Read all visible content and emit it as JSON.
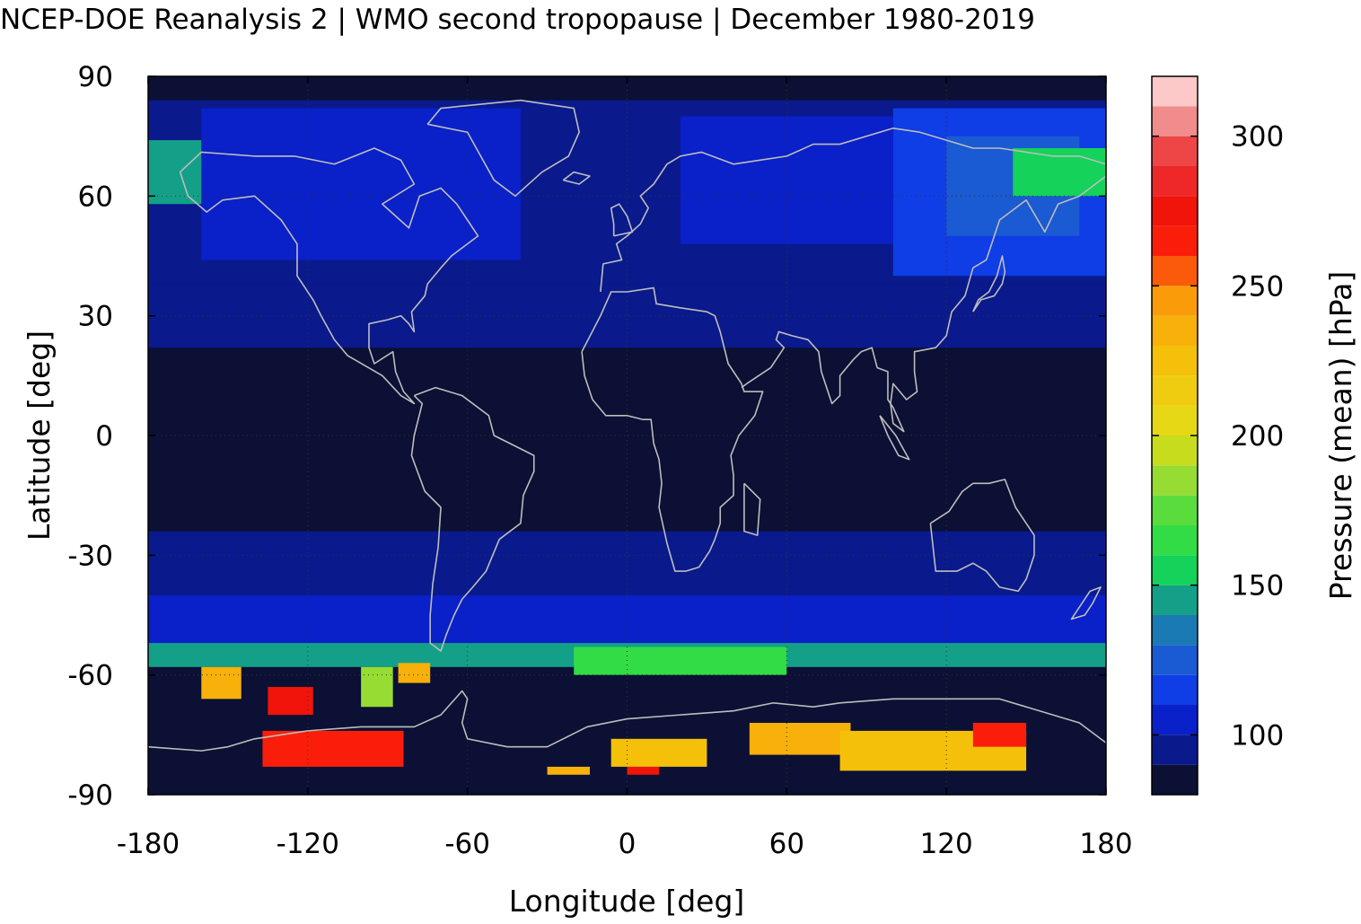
{
  "chart_data": {
    "type": "heatmap",
    "title": "NCEP-DOE Reanalysis 2 | WMO second tropopause | December 1980-2019",
    "xlabel": "Longitude [deg]",
    "ylabel": "Latitude [deg]",
    "colorbar_label": "Pressure (mean) [hPa]",
    "xlim": [
      -180,
      180
    ],
    "ylim": [
      -90,
      90
    ],
    "x_ticks": [
      -180,
      -120,
      -60,
      0,
      60,
      120,
      180
    ],
    "y_ticks": [
      90,
      60,
      30,
      0,
      -30,
      -60,
      -90
    ],
    "colorbar_range": [
      80,
      320
    ],
    "colorbar_ticks": [
      100,
      150,
      200,
      250,
      300
    ],
    "colorbar_levels": [
      {
        "from": 80,
        "to": 90,
        "color": "#0b1034"
      },
      {
        "from": 90,
        "to": 100,
        "color": "#0a1a8c"
      },
      {
        "from": 100,
        "to": 110,
        "color": "#0a20c8"
      },
      {
        "from": 110,
        "to": 120,
        "color": "#0f3de6"
      },
      {
        "from": 120,
        "to": 130,
        "color": "#1a5ad2"
      },
      {
        "from": 130,
        "to": 140,
        "color": "#1a7ab4"
      },
      {
        "from": 140,
        "to": 150,
        "color": "#14a088"
      },
      {
        "from": 150,
        "to": 160,
        "color": "#14d25a"
      },
      {
        "from": 160,
        "to": 170,
        "color": "#32dc46"
      },
      {
        "from": 170,
        "to": 180,
        "color": "#5adc3c"
      },
      {
        "from": 180,
        "to": 190,
        "color": "#96dc32"
      },
      {
        "from": 190,
        "to": 200,
        "color": "#c8dc1e"
      },
      {
        "from": 200,
        "to": 210,
        "color": "#e6d814"
      },
      {
        "from": 210,
        "to": 220,
        "color": "#f0cc10"
      },
      {
        "from": 220,
        "to": 230,
        "color": "#f4c00a"
      },
      {
        "from": 230,
        "to": 240,
        "color": "#f8b00a"
      },
      {
        "from": 240,
        "to": 250,
        "color": "#fa9c0a"
      },
      {
        "from": 250,
        "to": 260,
        "color": "#fa5a0a"
      },
      {
        "from": 260,
        "to": 270,
        "color": "#fa1e0a"
      },
      {
        "from": 270,
        "to": 280,
        "color": "#f0140a"
      },
      {
        "from": 280,
        "to": 290,
        "color": "#ee2828"
      },
      {
        "from": 290,
        "to": 300,
        "color": "#ee4646"
      },
      {
        "from": 300,
        "to": 310,
        "color": "#f08c8c"
      },
      {
        "from": 310,
        "to": 320,
        "color": "#fcc8c8"
      }
    ],
    "regions": [
      {
        "lon": [
          -180,
          180
        ],
        "lat": [
          -90,
          90
        ],
        "value": 85
      },
      {
        "lon": [
          -180,
          180
        ],
        "lat": [
          38,
          84
        ],
        "value": 98
      },
      {
        "lon": [
          -180,
          180
        ],
        "lat": [
          22,
          38
        ],
        "value": 92
      },
      {
        "lon": [
          -160,
          -40
        ],
        "lat": [
          44,
          82
        ],
        "value": 103
      },
      {
        "lon": [
          20,
          100
        ],
        "lat": [
          48,
          80
        ],
        "value": 103
      },
      {
        "lon": [
          100,
          180
        ],
        "lat": [
          40,
          82
        ],
        "value": 110
      },
      {
        "lon": [
          120,
          170
        ],
        "lat": [
          50,
          75
        ],
        "value": 125
      },
      {
        "lon": [
          145,
          180
        ],
        "lat": [
          60,
          72
        ],
        "value": 150
      },
      {
        "lon": [
          -180,
          -160
        ],
        "lat": [
          58,
          74
        ],
        "value": 145
      },
      {
        "lon": [
          -180,
          180
        ],
        "lat": [
          -40,
          -24
        ],
        "value": 92
      },
      {
        "lon": [
          -180,
          180
        ],
        "lat": [
          -55,
          -40
        ],
        "value": 108
      },
      {
        "lon": [
          -180,
          180
        ],
        "lat": [
          -58,
          -52
        ],
        "value": 140
      },
      {
        "lon": [
          -20,
          60
        ],
        "lat": [
          -60,
          -53
        ],
        "value": 168
      },
      {
        "lon": [
          -160,
          -145
        ],
        "lat": [
          -66,
          -58
        ],
        "value": 235
      },
      {
        "lon": [
          -135,
          -118
        ],
        "lat": [
          -70,
          -63
        ],
        "value": 272
      },
      {
        "lon": [
          -100,
          -88
        ],
        "lat": [
          -68,
          -58
        ],
        "value": 188
      },
      {
        "lon": [
          -86,
          -74
        ],
        "lat": [
          -62,
          -57
        ],
        "value": 230
      },
      {
        "lon": [
          -137,
          -84
        ],
        "lat": [
          -83,
          -74
        ],
        "value": 262
      },
      {
        "lon": [
          -30,
          -14
        ],
        "lat": [
          -85,
          -83
        ],
        "value": 235
      },
      {
        "lon": [
          0,
          12
        ],
        "lat": [
          -85,
          -83
        ],
        "value": 272
      },
      {
        "lon": [
          -6,
          30
        ],
        "lat": [
          -83,
          -76
        ],
        "value": 222
      },
      {
        "lon": [
          46,
          84
        ],
        "lat": [
          -80,
          -72
        ],
        "value": 232
      },
      {
        "lon": [
          80,
          150
        ],
        "lat": [
          -84,
          -74
        ],
        "value": 220
      },
      {
        "lon": [
          130,
          150
        ],
        "lat": [
          -78,
          -72
        ],
        "value": 262
      }
    ]
  }
}
